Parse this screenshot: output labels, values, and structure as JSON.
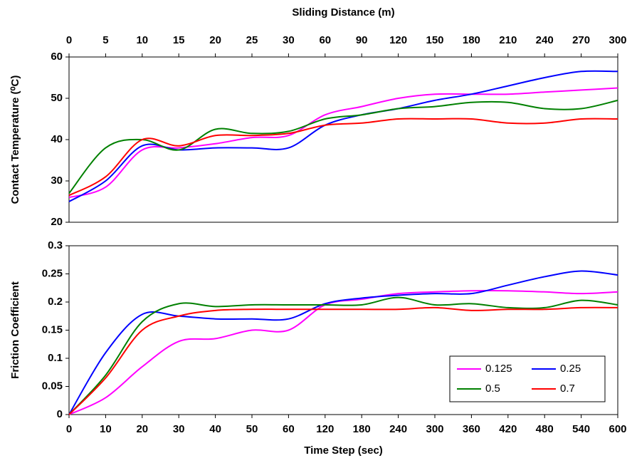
{
  "chart_data": [
    {
      "type": "line",
      "xlabel": "Sliding Distance (m)",
      "ylabel": "Contact Temperature (⁰C)",
      "x_axis_position": "top",
      "smooth": true,
      "categories": [
        "0",
        "5",
        "10",
        "15",
        "20",
        "25",
        "30",
        "60",
        "90",
        "120",
        "150",
        "180",
        "210",
        "240",
        "270",
        "300"
      ],
      "ylim": [
        20,
        60
      ],
      "yticks": [
        20,
        30,
        40,
        50,
        60
      ],
      "series": [
        {
          "name": "0.125",
          "color": "#ff00ff",
          "values": [
            26,
            28.5,
            37.5,
            38,
            39,
            40.5,
            41,
            46,
            48,
            50,
            51,
            51,
            51,
            51.5,
            52,
            52.5
          ]
        },
        {
          "name": "0.25",
          "color": "#0000ff",
          "values": [
            25,
            30,
            38.5,
            37.5,
            38,
            38,
            38,
            43.5,
            46,
            47.5,
            49.5,
            51,
            53,
            55,
            56.5,
            56.5
          ]
        },
        {
          "name": "0.5",
          "color": "#008000",
          "values": [
            27,
            38,
            40,
            37.5,
            42.5,
            41.5,
            42,
            45,
            46,
            47.5,
            48,
            49,
            49,
            47.5,
            47.5,
            49.5
          ]
        },
        {
          "name": "0.7",
          "color": "#ff0000",
          "values": [
            26.5,
            31,
            40,
            38.5,
            41,
            41,
            41.5,
            43.5,
            44,
            45,
            45,
            45,
            44,
            44,
            45,
            45
          ]
        }
      ]
    },
    {
      "type": "line",
      "xlabel": "Time Step (sec)",
      "ylabel": "Friction Coefficient",
      "x_axis_position": "bottom",
      "smooth": true,
      "legend": "lower right",
      "categories": [
        "0",
        "10",
        "20",
        "30",
        "40",
        "50",
        "60",
        "120",
        "180",
        "240",
        "300",
        "360",
        "420",
        "480",
        "540",
        "600"
      ],
      "ylim": [
        0,
        0.3
      ],
      "yticks": [
        0,
        0.05,
        0.1,
        0.15,
        0.2,
        0.25,
        0.3
      ],
      "series": [
        {
          "name": "0.125",
          "color": "#ff00ff",
          "values": [
            0,
            0.03,
            0.085,
            0.13,
            0.135,
            0.15,
            0.15,
            0.195,
            0.205,
            0.215,
            0.218,
            0.22,
            0.22,
            0.218,
            0.215,
            0.218
          ]
        },
        {
          "name": "0.25",
          "color": "#0000ff",
          "values": [
            0,
            0.11,
            0.178,
            0.175,
            0.17,
            0.17,
            0.17,
            0.197,
            0.207,
            0.212,
            0.215,
            0.215,
            0.23,
            0.245,
            0.255,
            0.248
          ]
        },
        {
          "name": "0.5",
          "color": "#008000",
          "values": [
            0,
            0.07,
            0.165,
            0.197,
            0.192,
            0.195,
            0.195,
            0.195,
            0.195,
            0.208,
            0.195,
            0.197,
            0.19,
            0.19,
            0.203,
            0.195
          ]
        },
        {
          "name": "0.7",
          "color": "#ff0000",
          "values": [
            0,
            0.065,
            0.15,
            0.175,
            0.185,
            0.187,
            0.187,
            0.187,
            0.187,
            0.187,
            0.19,
            0.185,
            0.187,
            0.187,
            0.19,
            0.19
          ]
        }
      ]
    }
  ]
}
